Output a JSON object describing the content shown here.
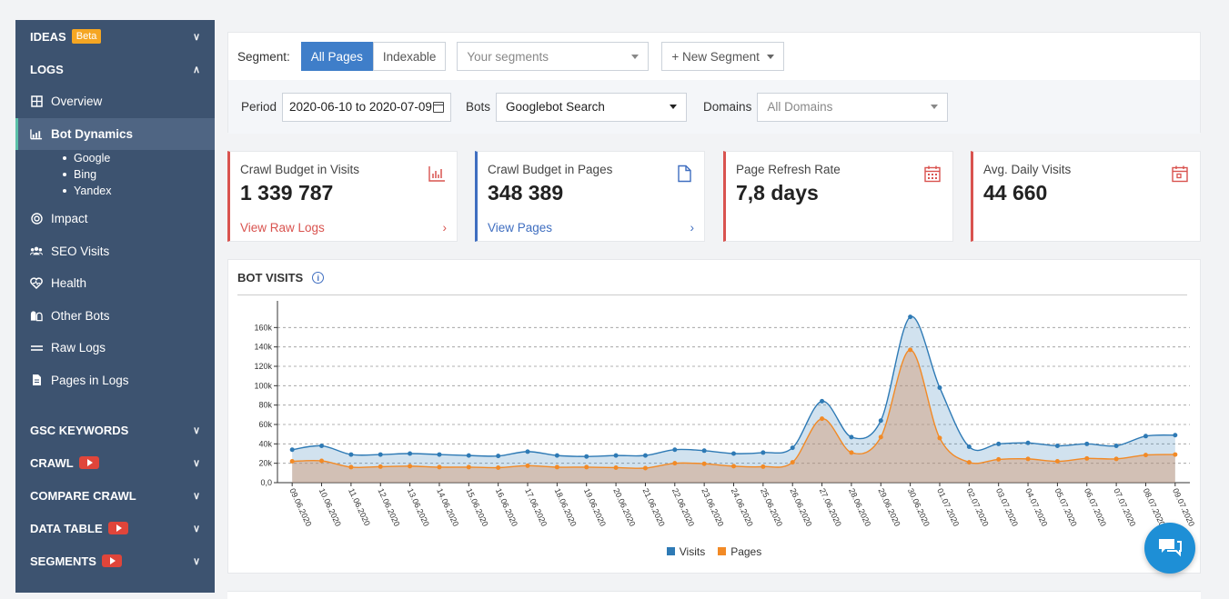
{
  "sidebar": {
    "ideas": {
      "label": "IDEAS",
      "badge": "Beta"
    },
    "logs": {
      "label": "LOGS"
    },
    "items": [
      {
        "label": "Overview",
        "icon": "grid-icon"
      },
      {
        "label": "Bot Dynamics",
        "icon": "chart-icon"
      },
      {
        "label": "Impact",
        "icon": "target-icon"
      },
      {
        "label": "SEO Visits",
        "icon": "users-icon"
      },
      {
        "label": "Health",
        "icon": "heart-icon"
      },
      {
        "label": "Other Bots",
        "icon": "bots-icon"
      },
      {
        "label": "Raw Logs",
        "icon": "lines-icon"
      },
      {
        "label": "Pages in Logs",
        "icon": "file-icon"
      }
    ],
    "sub_items": [
      "Google",
      "Bing",
      "Yandex"
    ],
    "sections": [
      {
        "label": "GSC KEYWORDS",
        "video": false
      },
      {
        "label": "CRAWL",
        "video": true
      },
      {
        "label": "COMPARE CRAWL",
        "video": false
      },
      {
        "label": "DATA TABLE",
        "video": true
      },
      {
        "label": "SEGMENTS",
        "video": true
      }
    ]
  },
  "filters": {
    "segment_label": "Segment:",
    "all_pages": "All Pages",
    "indexable": "Indexable",
    "segments_placeholder": "Your segments",
    "new_segment": "+ New Segment",
    "period_label": "Period",
    "period_value": "2020-06-10 to 2020-07-09",
    "bots_label": "Bots",
    "bots_value": "Googlebot Search",
    "domains_label": "Domains",
    "domains_placeholder": "All Domains"
  },
  "kpis": [
    {
      "title": "Crawl Budget in Visits",
      "value": "1 339 787",
      "link": "View Raw Logs",
      "icon": "bar-chart-icon",
      "color": "#d9534f"
    },
    {
      "title": "Crawl Budget in Pages",
      "value": "348 389",
      "link": "View Pages",
      "icon": "file-icon",
      "color": "#3f6ec0"
    },
    {
      "title": "Page Refresh Rate",
      "value": "7,8 days",
      "link": "",
      "icon": "calendar-icon",
      "color": "#d9534f"
    },
    {
      "title": "Avg. Daily Visits",
      "value": "44 660",
      "link": "",
      "icon": "calendar-day-icon",
      "color": "#d9534f"
    }
  ],
  "chart": {
    "title": "BOT VISITS",
    "legend": [
      "Visits",
      "Pages"
    ]
  },
  "chart_data": {
    "type": "area",
    "x": [
      "09.06.2020",
      "10.06.2020",
      "11.06.2020",
      "12.06.2020",
      "13.06.2020",
      "14.06.2020",
      "15.06.2020",
      "16.06.2020",
      "17.06.2020",
      "18.06.2020",
      "19.06.2020",
      "20.06.2020",
      "21.06.2020",
      "22.06.2020",
      "23.06.2020",
      "24.06.2020",
      "25.06.2020",
      "26.06.2020",
      "27.06.2020",
      "28.06.2020",
      "29.06.2020",
      "30.06.2020",
      "01.07.2020",
      "02.07.2020",
      "03.07.2020",
      "04.07.2020",
      "05.07.2020",
      "06.07.2020",
      "07.07.2020",
      "08.07.2020",
      "09.07.2020"
    ],
    "series": [
      {
        "name": "Visits",
        "color": "#2e7ab5",
        "values": [
          34000,
          38000,
          29000,
          29000,
          30000,
          29000,
          28000,
          27500,
          32000,
          28000,
          27000,
          28000,
          28000,
          34000,
          33000,
          30000,
          31000,
          36000,
          84000,
          47000,
          64000,
          171000,
          98000,
          37000,
          40000,
          41000,
          38000,
          40000,
          38000,
          48000,
          49000
        ]
      },
      {
        "name": "Pages",
        "color": "#f28a26",
        "values": [
          22000,
          22500,
          16000,
          16500,
          17000,
          16000,
          16000,
          15500,
          17500,
          16000,
          16000,
          15500,
          15000,
          20000,
          19500,
          17000,
          16500,
          21000,
          66000,
          31000,
          47000,
          137000,
          46000,
          21000,
          24000,
          24500,
          22000,
          25000,
          24500,
          28500,
          29000
        ]
      }
    ],
    "yticks": [
      "0,0",
      "20k",
      "40k",
      "60k",
      "80k",
      "100k",
      "120k",
      "140k",
      "160k"
    ],
    "ylim": [
      0,
      180000
    ],
    "grid": true,
    "legend_position": "bottom"
  }
}
